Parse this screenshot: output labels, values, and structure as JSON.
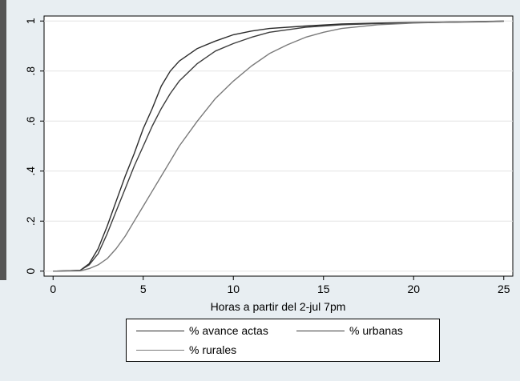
{
  "chart_data": {
    "type": "line",
    "title": "",
    "xlabel": "Horas a partir del 2-jul 7pm",
    "ylabel": "",
    "xlim": [
      -0.5,
      25.5
    ],
    "ylim": [
      -0.02,
      1.02
    ],
    "x_ticks": [
      0,
      5,
      10,
      15,
      20,
      25
    ],
    "x_tick_labels": [
      "0",
      "5",
      "10",
      "15",
      "20",
      "25"
    ],
    "y_ticks": [
      0,
      0.2,
      0.4,
      0.6,
      0.8,
      1
    ],
    "y_tick_labels": [
      "0",
      ".2",
      ".4",
      ".6",
      ".8",
      "1"
    ],
    "grid": "horizontal",
    "legend_position": "bottom",
    "series": [
      {
        "name": "% avance actas",
        "color": "#2b2b2b",
        "x": [
          0,
          1.5,
          2,
          2.5,
          3,
          3.5,
          4,
          4.5,
          5,
          5.5,
          6,
          6.5,
          7,
          8,
          9,
          10,
          11,
          12,
          14,
          16,
          18,
          20,
          22,
          24,
          25
        ],
        "y": [
          0,
          0.003,
          0.03,
          0.09,
          0.18,
          0.28,
          0.38,
          0.47,
          0.57,
          0.65,
          0.74,
          0.8,
          0.84,
          0.89,
          0.92,
          0.945,
          0.96,
          0.97,
          0.98,
          0.988,
          0.992,
          0.994,
          0.996,
          0.998,
          1.0
        ]
      },
      {
        "name": "% urbanas",
        "color": "#3c3c3c",
        "x": [
          0,
          1.5,
          2,
          2.5,
          3,
          3.5,
          4,
          4.5,
          5,
          5.5,
          6,
          6.5,
          7,
          8,
          9,
          10,
          11,
          12,
          14,
          16,
          18,
          20,
          22,
          24,
          25
        ],
        "y": [
          0,
          0.003,
          0.025,
          0.07,
          0.15,
          0.24,
          0.33,
          0.42,
          0.5,
          0.58,
          0.65,
          0.71,
          0.76,
          0.83,
          0.88,
          0.91,
          0.935,
          0.955,
          0.975,
          0.985,
          0.99,
          0.993,
          0.995,
          0.997,
          0.999
        ]
      },
      {
        "name": "% rurales",
        "color": "#7a7a7a",
        "x": [
          0,
          1.5,
          2,
          2.5,
          3,
          3.5,
          4,
          4.5,
          5,
          5.5,
          6,
          6.5,
          7,
          8,
          9,
          10,
          11,
          12,
          13,
          14,
          15,
          16,
          18,
          20,
          22,
          25
        ],
        "y": [
          0,
          0.001,
          0.01,
          0.025,
          0.05,
          0.09,
          0.14,
          0.2,
          0.26,
          0.32,
          0.38,
          0.44,
          0.5,
          0.6,
          0.69,
          0.76,
          0.82,
          0.87,
          0.905,
          0.935,
          0.955,
          0.97,
          0.985,
          0.992,
          0.996,
          1.0
        ]
      }
    ]
  }
}
